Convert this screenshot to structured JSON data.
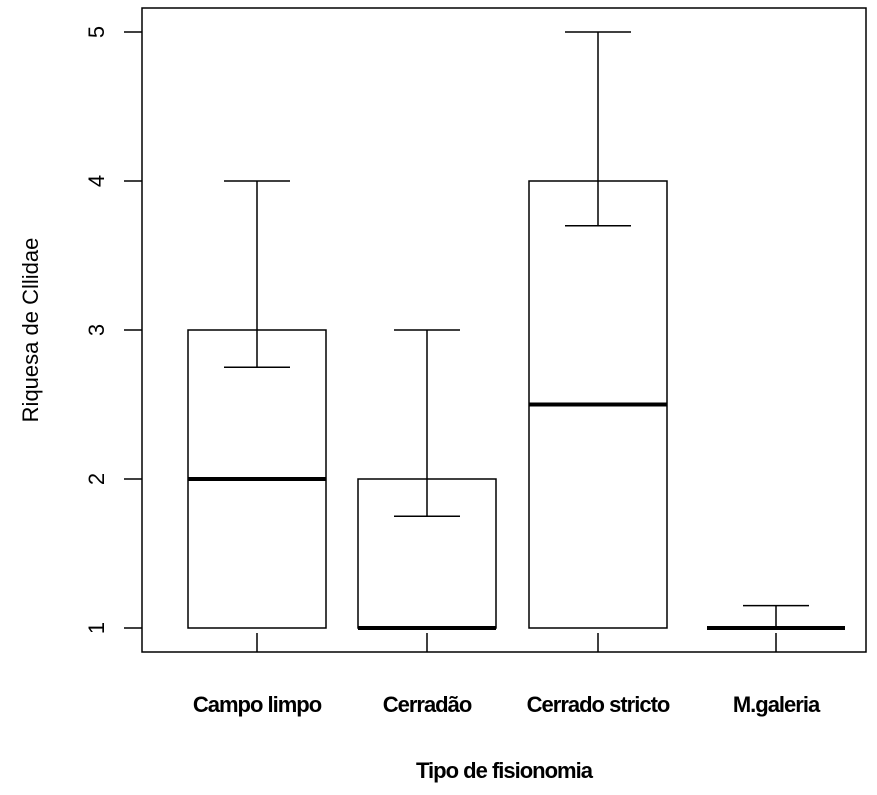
{
  "chart_data": {
    "type": "bar",
    "title": "",
    "xlabel": "Tipo de fisionomia",
    "ylabel": "Riquesa de Cllidae",
    "categories": [
      "Campo limpo",
      "Cerradão",
      "Cerrado stricto",
      "M.galeria"
    ],
    "values": [
      3,
      2,
      4,
      1
    ],
    "medians": [
      2,
      1,
      2.5,
      1
    ],
    "error_upper": [
      4,
      3,
      5,
      1.15
    ],
    "error_lower": [
      2.75,
      1.75,
      3.7,
      1
    ],
    "baseline": 1,
    "ylim": [
      0.83,
      5.15
    ],
    "yticks": [
      1,
      2,
      3,
      4,
      5
    ],
    "grid": false,
    "legend": "none"
  }
}
